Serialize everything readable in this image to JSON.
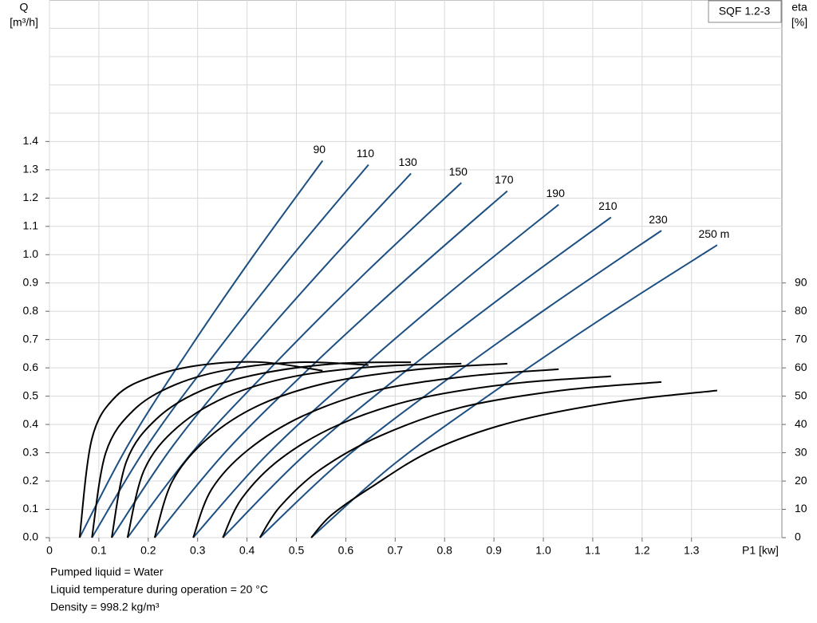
{
  "chart_data": {
    "type": "line",
    "title": "SQF 1.2-3",
    "ylabel": "Q",
    "yunit": "[m³/h]",
    "y2label": "eta",
    "y2unit": "[%]",
    "xlabel": "P1 [kw]",
    "xlim": [
      0,
      1.483
    ],
    "ylim": [
      0,
      1.9
    ],
    "y2lim": [
      0,
      190
    ],
    "xticks": [
      0,
      0.1,
      0.2,
      0.3,
      0.4,
      0.5,
      0.6,
      0.7,
      0.8,
      0.9,
      {
        "value": 1,
        "label": "1.0"
      },
      1.1,
      1.2,
      1.3
    ],
    "yticks": [
      {
        "value": 0,
        "label": "0.0"
      },
      0.1,
      0.2,
      0.3,
      0.4,
      0.5,
      0.6,
      0.7,
      0.8,
      0.9,
      {
        "value": 1,
        "label": "1.0"
      },
      1.1,
      1.2,
      1.3,
      1.4
    ],
    "y2ticks": [
      0,
      10,
      20,
      30,
      40,
      50,
      60,
      70,
      80,
      90
    ],
    "ygrid_extra": [
      1.5,
      1.6,
      1.7,
      1.8
    ],
    "grid": true,
    "series": [
      {
        "name": "90",
        "color": "#1c4f82",
        "x": [
          0.061,
          0.161,
          0.283,
          0.414,
          0.553
        ],
        "values": [
          0,
          0.333,
          0.666,
          0.999,
          1.332
        ]
      },
      {
        "name": "110",
        "color": "#1c4f82",
        "x": [
          0.086,
          0.2,
          0.339,
          0.488,
          0.646
        ],
        "values": [
          0,
          0.33,
          0.659,
          0.989,
          1.318
        ]
      },
      {
        "name": "130",
        "color": "#1c4f82",
        "x": [
          0.126,
          0.249,
          0.399,
          0.561,
          0.732
        ],
        "values": [
          0,
          0.322,
          0.644,
          0.965,
          1.287
        ]
      },
      {
        "name": "150",
        "color": "#1c4f82",
        "x": [
          0.158,
          0.295,
          0.463,
          0.643,
          0.834
        ],
        "values": [
          0,
          0.314,
          0.627,
          0.941,
          1.254
        ]
      },
      {
        "name": "170",
        "color": "#1c4f82",
        "x": [
          0.213,
          0.358,
          0.535,
          0.726,
          0.927
        ],
        "values": [
          0,
          0.306,
          0.613,
          0.919,
          1.225
        ]
      },
      {
        "name": "190",
        "color": "#1c4f82",
        "x": [
          0.291,
          0.441,
          0.625,
          0.822,
          1.031
        ],
        "values": [
          0,
          0.294,
          0.589,
          0.883,
          1.177
        ]
      },
      {
        "name": "210",
        "color": "#1c4f82",
        "x": [
          0.351,
          0.511,
          0.705,
          0.915,
          1.137
        ],
        "values": [
          0,
          0.283,
          0.566,
          0.849,
          1.132
        ]
      },
      {
        "name": "230",
        "color": "#1c4f82",
        "x": [
          0.426,
          0.591,
          0.793,
          1.01,
          1.239
        ],
        "values": [
          0,
          0.271,
          0.543,
          0.814,
          1.085
        ]
      },
      {
        "name": "250 m",
        "color": "#1c4f82",
        "x": [
          0.53,
          0.697,
          0.901,
          1.12,
          1.352
        ],
        "values": [
          0,
          0.259,
          0.517,
          0.776,
          1.034
        ]
      },
      {
        "axis": "y2",
        "color": "#000000",
        "x": [
          0.061,
          0.086,
          0.135,
          0.209,
          0.307,
          0.43,
          0.553
        ],
        "values": [
          0,
          35,
          50,
          57,
          61,
          62,
          59
        ]
      },
      {
        "axis": "y2",
        "color": "#000000",
        "x": [
          0.086,
          0.114,
          0.17,
          0.254,
          0.366,
          0.506,
          0.646
        ],
        "values": [
          0,
          30,
          45,
          54,
          59.5,
          62,
          61
        ]
      },
      {
        "axis": "y2",
        "color": "#000000",
        "x": [
          0.126,
          0.156,
          0.217,
          0.308,
          0.429,
          0.581,
          0.732
        ],
        "values": [
          0,
          27,
          42,
          52,
          58,
          61.5,
          62
        ]
      },
      {
        "axis": "y2",
        "color": "#000000",
        "x": [
          0.158,
          0.192,
          0.259,
          0.361,
          0.496,
          0.665,
          0.834
        ],
        "values": [
          0,
          24,
          39,
          50,
          57,
          60.5,
          61.5
        ]
      },
      {
        "axis": "y2",
        "color": "#000000",
        "x": [
          0.213,
          0.249,
          0.32,
          0.427,
          0.57,
          0.749,
          0.927
        ],
        "values": [
          0,
          20,
          35,
          47,
          55,
          59.5,
          61.5
        ]
      },
      {
        "axis": "y2",
        "color": "#000000",
        "x": [
          0.291,
          0.328,
          0.402,
          0.513,
          0.661,
          0.846,
          1.031
        ],
        "values": [
          0,
          17,
          31,
          43,
          52,
          57,
          59.5
        ]
      },
      {
        "axis": "y2",
        "color": "#000000",
        "x": [
          0.351,
          0.39,
          0.469,
          0.587,
          0.744,
          0.941,
          1.137
        ],
        "values": [
          0,
          14,
          28,
          40,
          49,
          54.5,
          57
        ]
      },
      {
        "axis": "y2",
        "color": "#000000",
        "x": [
          0.426,
          0.467,
          0.548,
          0.67,
          0.833,
          1.036,
          1.239
        ],
        "values": [
          0,
          11,
          24,
          36,
          46,
          52,
          55
        ]
      },
      {
        "axis": "y2",
        "color": "#000000",
        "x": [
          0.53,
          0.571,
          0.653,
          0.777,
          0.941,
          1.147,
          1.352
        ],
        "values": [
          0,
          8,
          18,
          31,
          41,
          48,
          52
        ]
      }
    ],
    "notes": [
      "Pumped liquid = Water",
      "Liquid temperature during operation = 20 °C",
      "Density = 998.2 kg/m³"
    ]
  }
}
